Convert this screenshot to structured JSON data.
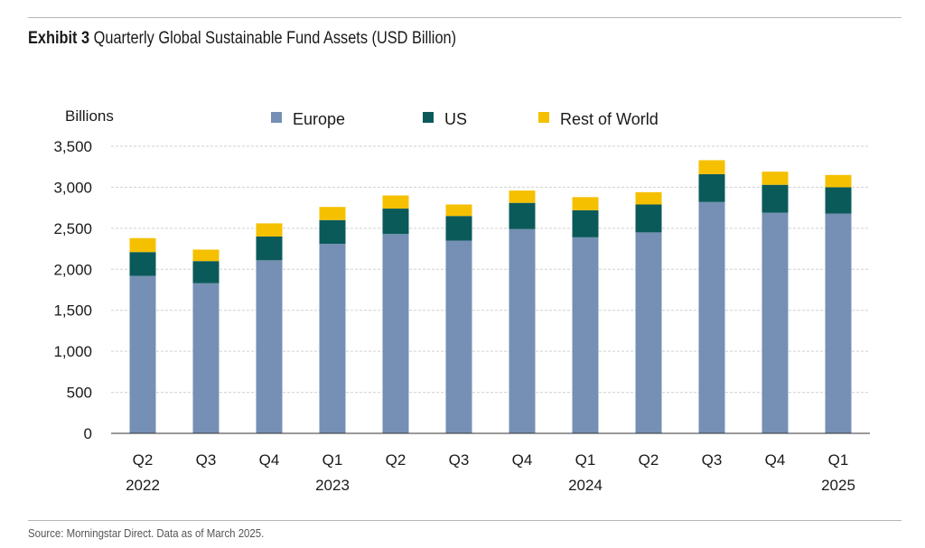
{
  "exhibit": {
    "label": "Exhibit 3",
    "title": "Quarterly Global Sustainable Fund Assets (USD Billion)"
  },
  "source": "Source: Morningstar Direct. Data as of March 2025.",
  "colors": {
    "europe": "#7590b4",
    "us": "#0b5a5a",
    "rest_of_world": "#f5c000",
    "grid": "#d0d0d0",
    "axis": "#333333"
  },
  "chart_data": {
    "type": "bar",
    "stacked": true,
    "title": "Quarterly Global Sustainable Fund Assets (USD Billion)",
    "ylabel": "Billions",
    "xlabel": "",
    "ylim": [
      0,
      3500
    ],
    "yticks": [
      0,
      500,
      1000,
      1500,
      2000,
      2500,
      3000,
      3500
    ],
    "ytick_labels": [
      "0",
      "500",
      "1,000",
      "1,500",
      "2,000",
      "2,500",
      "3,000",
      "3,500"
    ],
    "grid": true,
    "legend_position": "top",
    "categories": [
      [
        "Q2",
        "2022"
      ],
      [
        "Q3",
        ""
      ],
      [
        "Q4",
        ""
      ],
      [
        "Q1",
        "2023"
      ],
      [
        "Q2",
        ""
      ],
      [
        "Q3",
        ""
      ],
      [
        "Q4",
        ""
      ],
      [
        "Q1",
        "2024"
      ],
      [
        "Q2",
        ""
      ],
      [
        "Q3",
        ""
      ],
      [
        "Q4",
        ""
      ],
      [
        "Q1",
        "2025"
      ]
    ],
    "series": [
      {
        "name": "Europe",
        "color_key": "europe",
        "values": [
          1920,
          1830,
          2110,
          2310,
          2430,
          2350,
          2490,
          2390,
          2450,
          2820,
          2690,
          2680
        ]
      },
      {
        "name": "US",
        "color_key": "us",
        "values": [
          290,
          270,
          290,
          290,
          310,
          300,
          320,
          330,
          340,
          340,
          340,
          320
        ]
      },
      {
        "name": "Rest of World",
        "color_key": "rest_of_world",
        "values": [
          170,
          140,
          160,
          160,
          160,
          140,
          150,
          160,
          150,
          170,
          160,
          150
        ]
      }
    ]
  }
}
